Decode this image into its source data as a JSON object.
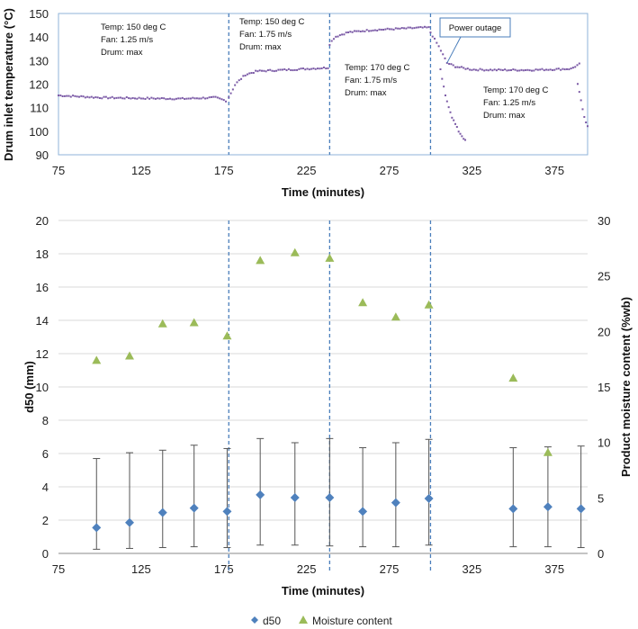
{
  "chart_data": [
    {
      "type": "scatter",
      "title": "",
      "xlabel": "Time (minutes)",
      "ylabel": "Drum inlet temperature (°C)",
      "xlim": [
        75,
        395
      ],
      "ylim": [
        90,
        150
      ],
      "xticks": [
        "75",
        "125",
        "175",
        "225",
        "275",
        "325",
        "375"
      ],
      "yticks": [
        "90",
        "100",
        "110",
        "120",
        "130",
        "140",
        "150"
      ],
      "phase_boundaries": [
        178,
        239,
        300
      ],
      "series": [
        {
          "name": "Drum inlet temperature",
          "color": "#7b5aa6",
          "segments": [
            {
              "x": [
                75,
                100,
                125,
                150,
                170,
                177
              ],
              "y": [
                115.2,
                114.3,
                114.0,
                113.8,
                114.3,
                112.8
              ]
            },
            {
              "x": [
                178,
                182,
                188,
                195,
                210,
                225,
                239
              ],
              "y": [
                114.5,
                120.0,
                124.0,
                125.5,
                126.0,
                126.5,
                127.0
              ]
            },
            {
              "x": [
                239,
                242,
                250,
                265,
                280,
                295,
                300
              ],
              "y": [
                137.0,
                140.0,
                142.0,
                143.0,
                143.5,
                144.0,
                144.0
              ]
            },
            {
              "x": [
                300,
                305,
                310,
                315,
                320,
                325,
                340,
                360,
                385,
                390
              ],
              "y": [
                142.0,
                136.0,
                129.0,
                127.5,
                126.8,
                126.2,
                126.0,
                126.0,
                126.5,
                128.5
              ]
            },
            {
              "x": [
                306,
                309,
                313,
                317,
                321
              ],
              "y": [
                126.0,
                115.0,
                106.0,
                100.0,
                96.0
              ]
            },
            {
              "x": [
                389,
                391,
                393,
                395
              ],
              "y": [
                120.0,
                113.0,
                106.0,
                102.0
              ]
            }
          ]
        }
      ],
      "annotations": [
        {
          "lines": [
            "Temp: 150 deg C",
            "Fan: 1.25 m/s",
            "Drum: max"
          ]
        },
        {
          "lines": [
            "Temp: 150 deg C",
            "Fan: 1.75 m/s",
            "Drum: max"
          ]
        },
        {
          "lines": [
            "Temp: 170 deg C",
            "Fan: 1.75 m/s",
            "Drum: max"
          ]
        },
        {
          "lines": [
            "Temp: 170 deg C",
            "Fan: 1.25 m/s",
            "Drum: max"
          ]
        }
      ],
      "callout": {
        "label": "Power outage",
        "points_to": {
          "x": 310,
          "y": 129
        }
      }
    },
    {
      "type": "scatter",
      "title": "",
      "xlabel": "Time (minutes)",
      "ylabel": "d50 (mm)",
      "y2label": "Product moisture content (%wb)",
      "xlim": [
        75,
        395
      ],
      "ylim": [
        0,
        20
      ],
      "y2lim": [
        0,
        30
      ],
      "xticks": [
        "75",
        "125",
        "175",
        "225",
        "275",
        "325",
        "375"
      ],
      "yticks": [
        "0",
        "2",
        "4",
        "6",
        "8",
        "10",
        "12",
        "14",
        "16",
        "18",
        "20"
      ],
      "y2ticks": [
        "0",
        "5",
        "10",
        "15",
        "20",
        "25",
        "30"
      ],
      "phase_boundaries": [
        178,
        239,
        300
      ],
      "series": [
        {
          "name": "d50",
          "marker": "diamond",
          "color": "#4f81bd",
          "axis": "left",
          "x": [
            98,
            118,
            138,
            157,
            177,
            197,
            218,
            239,
            259,
            279,
            299,
            350,
            371,
            391
          ],
          "y": [
            1.55,
            1.85,
            2.45,
            2.72,
            2.52,
            3.52,
            3.35,
            3.35,
            2.52,
            3.05,
            3.3,
            2.68,
            2.8,
            2.68
          ],
          "err_low": [
            0.25,
            0.3,
            0.35,
            0.4,
            0.35,
            0.5,
            0.5,
            0.45,
            0.4,
            0.4,
            0.5,
            0.4,
            0.4,
            0.35
          ],
          "err_high": [
            5.7,
            6.05,
            6.2,
            6.5,
            6.3,
            6.9,
            6.65,
            6.9,
            6.35,
            6.65,
            6.85,
            6.35,
            6.4,
            6.45
          ]
        },
        {
          "name": "Moisture content",
          "marker": "triangle",
          "color": "#9bbb59",
          "axis": "right",
          "x": [
            98,
            118,
            138,
            157,
            177,
            197,
            218,
            239,
            259,
            279,
            299,
            350,
            371
          ],
          "y": [
            17.4,
            17.8,
            20.7,
            20.8,
            19.6,
            26.4,
            27.1,
            26.6,
            22.6,
            21.3,
            22.4,
            15.8,
            9.1
          ]
        }
      ],
      "legend": {
        "position": "bottom",
        "entries": [
          "d50",
          "Moisture content"
        ]
      }
    }
  ]
}
